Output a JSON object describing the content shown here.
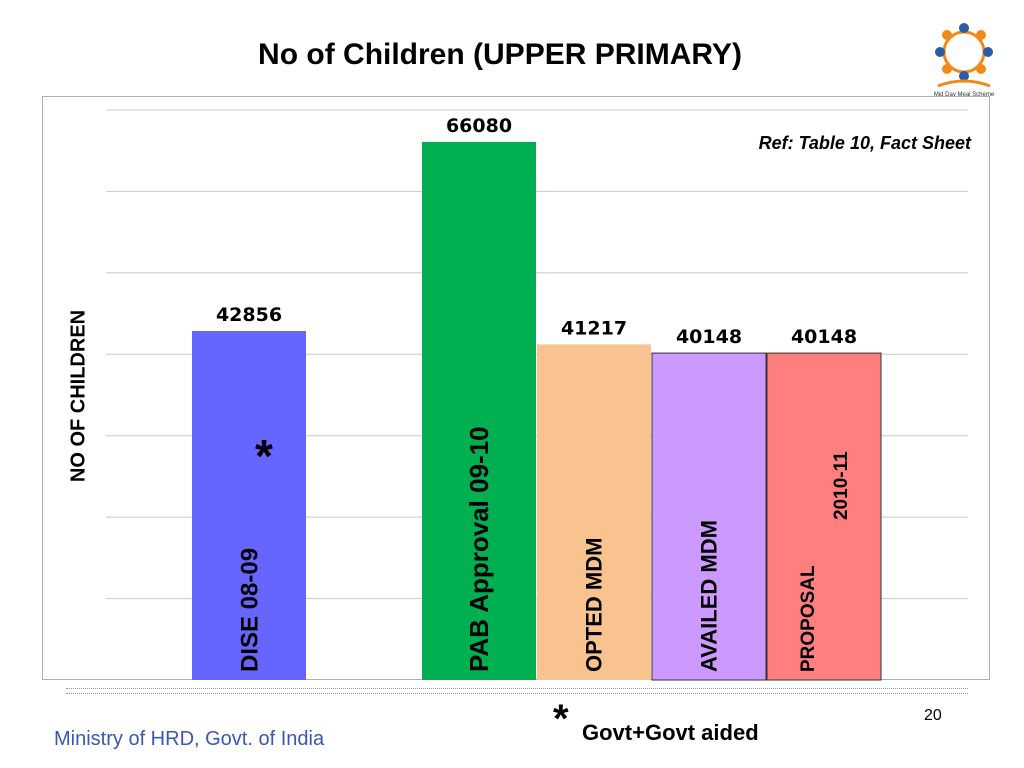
{
  "title": "No of Children (UPPER PRIMARY)",
  "reference": "Ref: Table 10, Fact Sheet",
  "logo_caption": "Mid Day Meal Scheme",
  "footer": {
    "ministry": "Ministry of HRD, Govt. of India",
    "footnote_mark": "*",
    "footnote_text": "Govt+Govt aided",
    "page_number": "20"
  },
  "chart_data": {
    "type": "bar",
    "title": "No of Children (UPPER PRIMARY)",
    "xlabel": "",
    "ylabel": "NO OF CHILDREN",
    "ylim": [
      0,
      70000
    ],
    "grid": true,
    "gridlines": [
      0,
      10000,
      20000,
      30000,
      40000,
      50000,
      60000,
      70000
    ],
    "categories": [
      "DISE 08-09",
      "PAB Approval 09-10",
      "OPTED MDM",
      "AVAILED MDM",
      "PROPOSAL 2010-11"
    ],
    "values": [
      42856,
      66080,
      41217,
      40148,
      40148
    ],
    "value_labels": [
      "42856",
      "66080",
      "41217",
      "40148",
      "40148"
    ],
    "colors": [
      "#6666ff",
      "#00b050",
      "#f9c38f",
      "#cc99ff",
      "#ff7f7f"
    ],
    "category_label_lines": [
      [
        "DISE 08-09"
      ],
      [
        "PAB Approval 09-10"
      ],
      [
        "OPTED MDM"
      ],
      [
        "AVAILED MDM"
      ],
      [
        "PROPOSAL",
        "2010-11"
      ]
    ],
    "annotations": [
      {
        "category": "DISE 08-09",
        "text": "*"
      }
    ]
  }
}
